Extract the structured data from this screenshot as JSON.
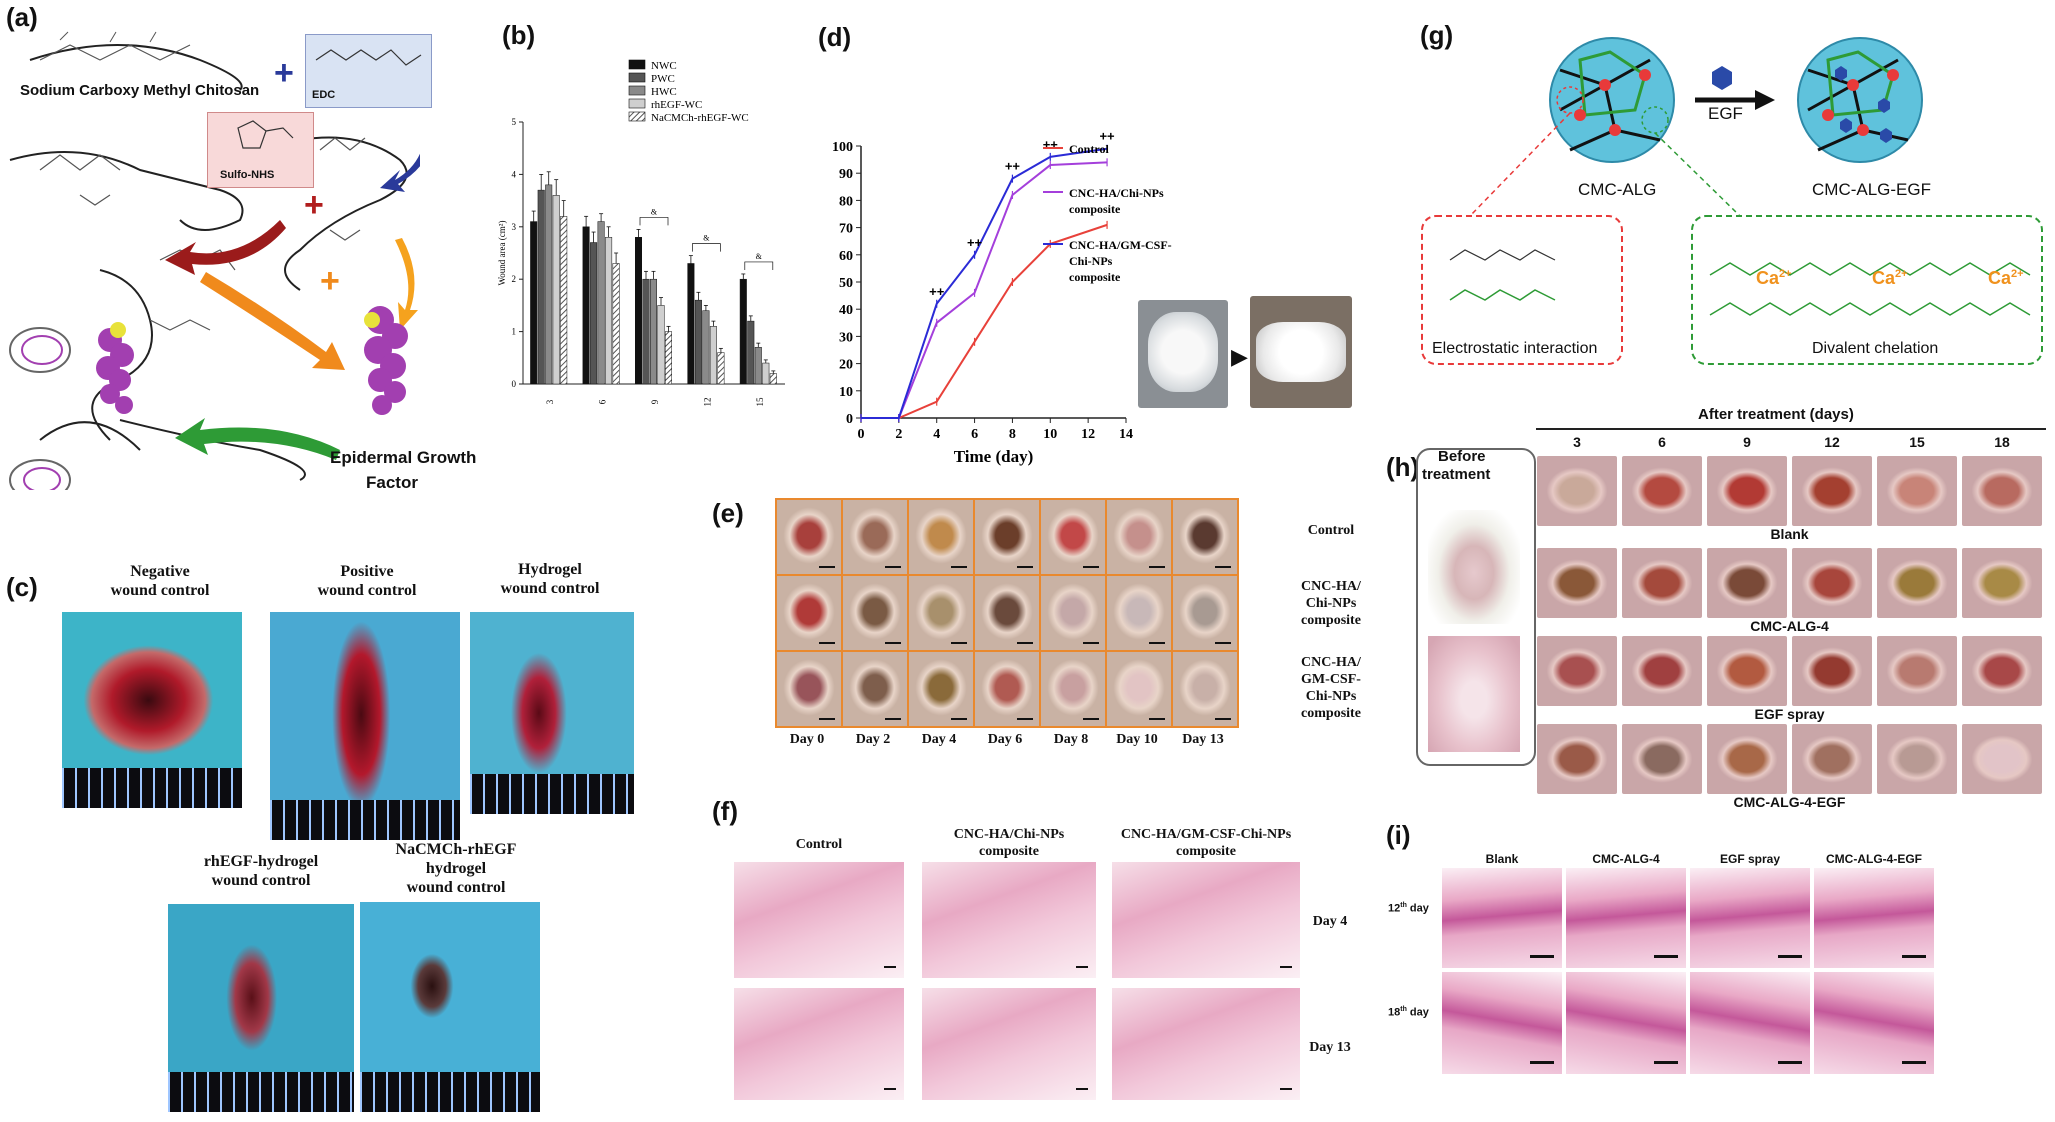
{
  "panels": {
    "a": {
      "label": "(a)",
      "sodium_label": "Sodium Carboxy Methyl Chitosan",
      "edc_label": "EDC",
      "sulfo_label": "Sulfo-NHS",
      "egf_label_line1": "Epidermal Growth",
      "egf_label_line2": "Factor",
      "plus_signs": [
        "+",
        "+",
        "+"
      ],
      "colors": {
        "edc_bg": "#d9e3f3",
        "sulfo_bg": "#f8d9d9",
        "protein": "#a23fb0"
      }
    },
    "b": {
      "label": "(b)",
      "legend": [
        "NWC",
        "PWC",
        "HWC",
        "rhEGF-WC",
        "NaCMCh-rhEGF-WC"
      ],
      "significance": [
        "&",
        "&",
        "&",
        "&&",
        "@@"
      ]
    },
    "c": {
      "label": "(c)",
      "photos": [
        {
          "line1": "Negative",
          "line2": "wound control"
        },
        {
          "line1": "Positive",
          "line2": "wound control"
        },
        {
          "line1": "Hydrogel",
          "line2": "wound control"
        },
        {
          "line1": "rhEGF-hydrogel",
          "line2": "wound control"
        },
        {
          "line1": "NaCMCh-rhEGF",
          "line2": "hydrogel",
          "line3": "wound control"
        }
      ]
    },
    "d": {
      "label": "(d)",
      "annotations": [
        "++",
        "++",
        "++",
        "++",
        "++"
      ]
    },
    "e": {
      "label": "(e)",
      "rows": [
        {
          "line1": "Control",
          "line2": "",
          "line3": "",
          "line4": ""
        },
        {
          "line1": "CNC-HA/",
          "line2": "Chi-NPs",
          "line3": "composite",
          "line4": ""
        },
        {
          "line1": "CNC-HA/",
          "line2": "GM-CSF-",
          "line3": "Chi-NPs",
          "line4": "composite"
        }
      ],
      "days": [
        "Day 0",
        "Day 2",
        "Day 4",
        "Day 6",
        "Day 8",
        "Day 10",
        "Day 13"
      ]
    },
    "f": {
      "label": "(f)",
      "columns": [
        {
          "line1": "Control",
          "line2": ""
        },
        {
          "line1": "CNC-HA/Chi-NPs",
          "line2": "composite"
        },
        {
          "line1": "CNC-HA/GM-CSF-Chi-NPs",
          "line2": "composite"
        }
      ],
      "rows": [
        "Day 4",
        "Day 13"
      ]
    },
    "g": {
      "label": "(g)",
      "left_title": "CMC-ALG",
      "right_title": "CMC-ALG-EGF",
      "arrow_label": "EGF",
      "box_left": "Electrostatic interaction",
      "box_right": "Divalent chelation",
      "ca_label": "Ca",
      "ca_sup": "2+"
    },
    "h": {
      "label": "(h)",
      "before_line1": "Before",
      "before_line2": "treatment",
      "header": "After treatment (days)",
      "days": [
        "3",
        "6",
        "9",
        "12",
        "15",
        "18"
      ],
      "groups": [
        "Blank",
        "CMC-ALG-4",
        "EGF spray",
        "CMC-ALG-4-EGF"
      ]
    },
    "i": {
      "label": "(i)",
      "columns": [
        "Blank",
        "CMC-ALG-4",
        "EGF spray",
        "CMC-ALG-4-EGF"
      ],
      "row1_day": "12",
      "row2_day": "18",
      "day_suffix": "th",
      "day_word": "day"
    }
  },
  "chart_data": [
    {
      "type": "bar",
      "title": "",
      "xlabel": "Time (days)",
      "ylabel": "Wound area (cm²)",
      "ylim": [
        0,
        5
      ],
      "yticks": [
        "0",
        "1",
        "2",
        "3",
        "4",
        "5"
      ],
      "categories": [
        "3",
        "6",
        "9",
        "12",
        "15"
      ],
      "series": [
        {
          "name": "NWC",
          "values": [
            3.1,
            3.0,
            2.8,
            2.3,
            2.0
          ],
          "errors": [
            0.2,
            0.2,
            0.15,
            0.15,
            0.1
          ]
        },
        {
          "name": "PWC",
          "values": [
            3.7,
            2.7,
            2.0,
            1.6,
            1.2
          ],
          "errors": [
            0.3,
            0.2,
            0.15,
            0.15,
            0.1
          ]
        },
        {
          "name": "HWC",
          "values": [
            3.8,
            3.1,
            2.0,
            1.4,
            0.7
          ],
          "errors": [
            0.25,
            0.15,
            0.15,
            0.1,
            0.08
          ]
        },
        {
          "name": "rhEGF-WC",
          "values": [
            3.6,
            2.8,
            1.5,
            1.1,
            0.4
          ],
          "errors": [
            0.3,
            0.2,
            0.15,
            0.1,
            0.06
          ]
        },
        {
          "name": "NaCMCh-rhEGF-WC",
          "values": [
            3.2,
            2.3,
            1.0,
            0.6,
            0.2
          ],
          "errors": [
            0.3,
            0.2,
            0.1,
            0.08,
            0.05
          ]
        }
      ]
    },
    {
      "type": "line",
      "title": "",
      "xlabel": "Time (day)",
      "ylabel": "",
      "xlim": [
        0,
        14
      ],
      "ylim": [
        0,
        100
      ],
      "xticks": [
        "0",
        "2",
        "4",
        "6",
        "8",
        "10",
        "12",
        "14"
      ],
      "yticks": [
        "0",
        "10",
        "20",
        "30",
        "40",
        "50",
        "60",
        "70",
        "80",
        "90",
        "100"
      ],
      "x": [
        0,
        2,
        4,
        6,
        8,
        10,
        13
      ],
      "series": [
        {
          "name": "Control",
          "values": [
            0,
            0,
            6,
            28,
            50,
            64,
            71
          ],
          "color": "#e8413a"
        },
        {
          "name": "CNC-HA/Chi-NPs composite",
          "values": [
            0,
            0,
            35,
            46,
            82,
            93,
            94
          ],
          "color": "#a43fdb"
        },
        {
          "name": "CNC-HA/GM-CSF-Chi-NPs composite",
          "values": [
            0,
            0,
            42,
            60,
            88,
            96,
            99
          ],
          "color": "#2b2bd6"
        }
      ]
    }
  ]
}
